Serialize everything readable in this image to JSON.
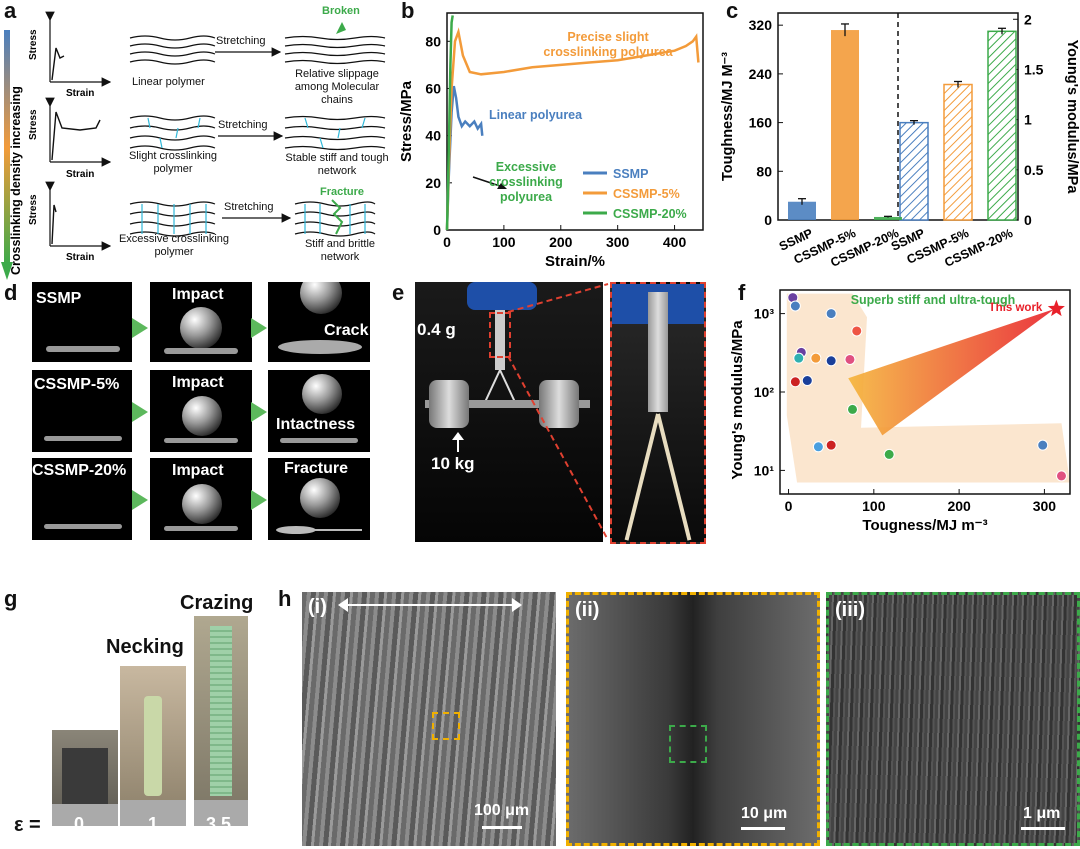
{
  "panels": {
    "a": {
      "label": "a",
      "axis_label": "Crosslinking  density increasing",
      "stress_label": "Stress",
      "strain_label": "Strain",
      "rows": [
        {
          "name": "Linear polymer",
          "action": "Stretching",
          "result": "Relative slippage among Molecular chains",
          "callout": "Broken"
        },
        {
          "name": "Slight crosslinking polymer",
          "action": "Stretching",
          "result": "Stable stiff and tough network",
          "callout": ""
        },
        {
          "name": "Excessive crosslinking polymer",
          "action": "Stretching",
          "result": "Stiff and brittle network",
          "callout": "Fracture"
        }
      ]
    },
    "b": {
      "label": "b",
      "annotations": {
        "precise": "Precise slight crosslinking polyurea",
        "linear": "Linear polyurea",
        "excessive": "Excessive crosslinking polyurea"
      }
    },
    "c": {
      "label": "c"
    },
    "d": {
      "label": "d",
      "rows": [
        {
          "sample": "SSMP",
          "mid": "Impact",
          "end": "Crack"
        },
        {
          "sample": "CSSMP-5%",
          "mid": "Impact",
          "end": "Intactness"
        },
        {
          "sample": "CSSMP-20%",
          "mid": "Impact",
          "end": "Fracture"
        }
      ]
    },
    "e": {
      "label": "e",
      "mass_small": "0.4 g",
      "mass_large": "10 kg"
    },
    "f": {
      "label": "f",
      "region_label": "Superb stiff and ultra-tough",
      "star_label": "This work"
    },
    "g": {
      "label": "g",
      "stage_necking": "Necking",
      "stage_crazing": "Crazing",
      "eps_prefix": "ε =",
      "eps_values": [
        "0",
        "1",
        "3.5"
      ]
    },
    "h": {
      "label": "h",
      "subpanels": [
        {
          "roman": "(i)",
          "scale": "100 μm"
        },
        {
          "roman": "(ii)",
          "scale": "10 μm"
        },
        {
          "roman": "(iii)",
          "scale": "1 μm"
        }
      ]
    }
  },
  "chart_data": [
    {
      "type": "line",
      "xlabel": "Strain/%",
      "ylabel": "Stress/MPa",
      "xlim": [
        0,
        450
      ],
      "ylim": [
        0,
        92
      ],
      "xticks": [
        0,
        100,
        200,
        300,
        400
      ],
      "yticks": [
        0,
        20,
        40,
        60,
        80
      ],
      "legend": "bottom-right",
      "series": [
        {
          "name": "SSMP",
          "color": "#4a7fbf",
          "x": [
            0,
            3,
            8,
            12,
            16,
            20,
            26,
            32,
            40,
            48,
            54,
            60,
            62
          ],
          "y": [
            0,
            22,
            50,
            61,
            56,
            48,
            44,
            46,
            44,
            46,
            43,
            45,
            40
          ]
        },
        {
          "name": "CSSMP-5%",
          "color": "#f39b3a",
          "x": [
            0,
            3,
            8,
            14,
            20,
            28,
            40,
            60,
            100,
            150,
            200,
            250,
            300,
            350,
            400,
            420,
            432,
            438,
            442
          ],
          "y": [
            0,
            25,
            60,
            80,
            84,
            74,
            67,
            66,
            67,
            69,
            70,
            71,
            72,
            74,
            76,
            78,
            80,
            82,
            71
          ]
        },
        {
          "name": "CSSMP-20%",
          "color": "#3caa4a",
          "x": [
            0,
            2,
            4,
            6,
            8,
            10
          ],
          "y": [
            0,
            20,
            45,
            70,
            88,
            91
          ]
        }
      ]
    },
    {
      "type": "bar",
      "categories": [
        "SSMP",
        "CSSMP-5%",
        "CSSMP-20%"
      ],
      "series": [
        {
          "name": "Toughness/MJ M⁻³",
          "axis": "left",
          "values": [
            30,
            312,
            5
          ],
          "errors": [
            5,
            10,
            1
          ]
        },
        {
          "name": "Young's modulus/MPa",
          "axis": "right",
          "values": [
            0.97,
            1.35,
            1.88
          ],
          "errors": [
            0.02,
            0.03,
            0.03
          ]
        }
      ],
      "colors": [
        "#4a7fbf",
        "#f39b3a",
        "#3caa4a"
      ],
      "ylabel_left": "Toughness/MJ M⁻³",
      "ylabel_right": "Young's modulus/MPa",
      "ylim_left": [
        0,
        340
      ],
      "yticks_left": [
        0,
        80,
        160,
        240,
        320
      ],
      "ylim_right": [
        0,
        2.0625
      ],
      "yticks_right": [
        "0",
        "0.5",
        "1",
        "1.5",
        "2"
      ]
    },
    {
      "type": "scatter",
      "xlabel": "Tougness/MJ m⁻³",
      "ylabel": "Young's modulus/MPa",
      "xlim": [
        -10,
        330
      ],
      "yscale": "log",
      "ylim": [
        5,
        2000
      ],
      "xticks": [
        0,
        100,
        200,
        300
      ],
      "yticks": [
        10,
        100,
        1000
      ],
      "ytick_labels": [
        "10¹",
        "10²",
        "10³"
      ],
      "points": [
        {
          "x": 5,
          "y": 1600,
          "color": "#6a3fa0"
        },
        {
          "x": 8,
          "y": 1250,
          "color": "#4a7fbf"
        },
        {
          "x": 50,
          "y": 1000,
          "color": "#4a7fbf"
        },
        {
          "x": 80,
          "y": 600,
          "color": "#e54"
        },
        {
          "x": 15,
          "y": 320,
          "color": "#6a3fa0"
        },
        {
          "x": 12,
          "y": 270,
          "color": "#30b0b0"
        },
        {
          "x": 32,
          "y": 270,
          "color": "#f39b3a"
        },
        {
          "x": 50,
          "y": 250,
          "color": "#1a3f9a"
        },
        {
          "x": 72,
          "y": 260,
          "color": "#e05080"
        },
        {
          "x": 8,
          "y": 135,
          "color": "#c22"
        },
        {
          "x": 22,
          "y": 140,
          "color": "#1a3f9a"
        },
        {
          "x": 75,
          "y": 60,
          "color": "#3caa4a"
        },
        {
          "x": 35,
          "y": 20,
          "color": "#4a9fdf"
        },
        {
          "x": 50,
          "y": 21,
          "color": "#c22"
        },
        {
          "x": 118,
          "y": 16,
          "color": "#3caa4a"
        },
        {
          "x": 298,
          "y": 21,
          "color": "#4a7fbf"
        },
        {
          "x": 320,
          "y": 8.5,
          "color": "#e05080"
        }
      ],
      "highlight": {
        "x": 314,
        "y": 1150,
        "label": "This work",
        "color": "#e8202a"
      }
    }
  ]
}
